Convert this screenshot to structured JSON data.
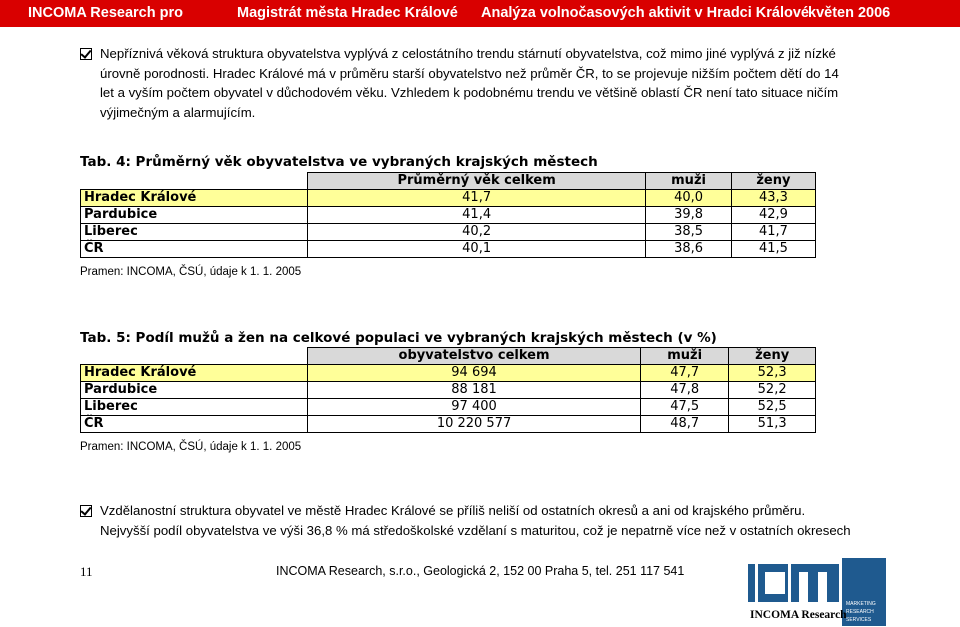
{
  "header": {
    "company": "INCOMA  Research pro",
    "client": "Magistrát města Hradec Králové",
    "study": "Analýza volnočasových aktivit v Hradci Králové",
    "date": "květen 2006"
  },
  "paragraph1": {
    "lines": [
      "Nepříznivá věková struktura obyvatelstva vyplývá z celostátního trendu stárnutí obyvatelstva, což mimo jiné vyplývá z již nízké",
      "úrovně porodnosti. Hradec Králové má v průměru starší obyvatelstvo než průměr ČR, to se projevuje nižším počtem dětí do 14",
      "let a vyším počtem obyvatel v důchodovém věku. Vzhledem k podobnému trendu ve většině oblastí ČR není tato situace ničím",
      "výjimečným a alarmujícím."
    ]
  },
  "table4": {
    "caption": "Tab. 4: Průměrný věk obyvatelstva ve vybraných krajských městech",
    "headers": [
      "",
      "Průměrný věk celkem",
      "muži",
      "ženy"
    ],
    "rows": [
      {
        "name": "Hradec Králové",
        "v1": "41,7",
        "v2": "40,0",
        "v3": "43,3"
      },
      {
        "name": "Pardubice",
        "v1": "41,4",
        "v2": "39,8",
        "v3": "42,9"
      },
      {
        "name": "Liberec",
        "v1": "40,2",
        "v2": "38,5",
        "v3": "41,7"
      },
      {
        "name": "ČR",
        "v1": "40,1",
        "v2": "38,6",
        "v3": "41,5"
      }
    ],
    "source": "Pramen: INCOMA, ČSÚ, údaje k 1. 1. 2005"
  },
  "table5": {
    "caption": "Tab. 5: Podíl mužů a žen na celkové populaci ve vybraných krajských městech (v %)",
    "headers": [
      "",
      "obyvatelstvo celkem",
      "muži",
      "ženy"
    ],
    "rows": [
      {
        "name": "Hradec Králové",
        "v1": "94 694",
        "v2": "47,7",
        "v3": "52,3"
      },
      {
        "name": "Pardubice",
        "v1": "88 181",
        "v2": "47,8",
        "v3": "52,2"
      },
      {
        "name": "Liberec",
        "v1": "97 400",
        "v2": "47,5",
        "v3": "52,5"
      },
      {
        "name": "ČR",
        "v1": "10 220 577",
        "v2": "48,7",
        "v3": "51,3"
      }
    ],
    "source": "Pramen: INCOMA, ČSÚ, údaje k 1. 1. 2005"
  },
  "paragraph2": {
    "lines": [
      "Vzdělanostní struktura obyvatel ve městě Hradec Králové se příliš neliší od ostatních okresů a ani od krajského průměru.",
      "Nejvyšší podíl obyvatelstva ve výši 36,8 % má středoškolské vzdělaní s maturitou, což je nepatrně více než v ostatních okresech"
    ]
  },
  "footer": {
    "page_number": "11",
    "address": "INCOMA Research, s.r.o., Geologická 2, 152 00 Praha 5, tel. 251 117 541"
  },
  "logo": {
    "mark": "ICM",
    "name": "INCOMA Research",
    "tagline": [
      "MARKETING",
      "RESEARCH",
      "SERVICES"
    ]
  },
  "colors": {
    "header_bg": "#d90000",
    "header_text": "#ffffff",
    "highlight_row": "#ffff99",
    "table_header_bg": "#d9d9d9",
    "logo_blue": "#1f5a8f"
  }
}
